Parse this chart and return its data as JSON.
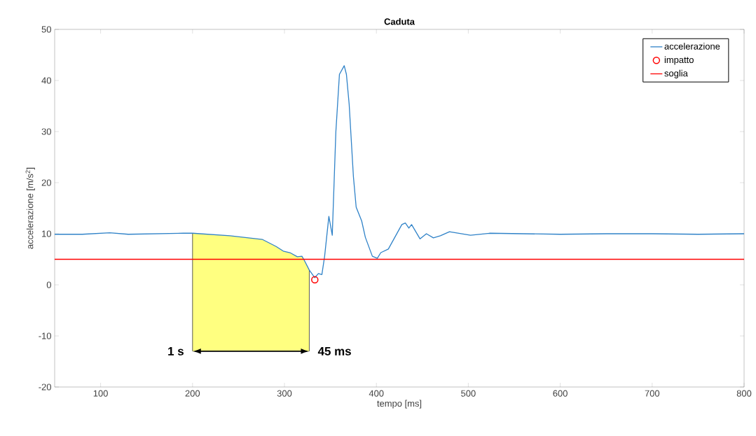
{
  "chart_data": {
    "type": "line",
    "title": "Caduta",
    "xlabel": "tempo [ms]",
    "ylabel": "accelerazione [m/s$^{2}$]",
    "xlim": [
      50,
      800
    ],
    "ylim": [
      -20,
      50
    ],
    "xticks": [
      100,
      200,
      300,
      400,
      500,
      600,
      700,
      800
    ],
    "yticks": [
      -20,
      -10,
      0,
      10,
      20,
      30,
      40,
      50
    ],
    "grid": false,
    "legend": "top right",
    "series": [
      {
        "name": "accelerazione",
        "color": "#2f82c8",
        "marker": "none",
        "x": [
          50,
          80,
          110,
          130,
          160,
          190,
          200,
          240.7,
          275.8,
          291,
          298.7,
          306,
          314,
          319,
          321.6,
          327,
          333,
          336.9,
          340.7,
          343.7,
          348.3,
          352,
          355.9,
          359.8,
          365,
          367.4,
          370.4,
          375,
          378,
          384,
          388,
          395.6,
          401,
          404.8,
          413,
          427.7,
          431.5,
          435.3,
          438.3,
          447.5,
          454.4,
          462,
          469.6,
          479.5,
          502.4,
          523,
          560,
          600,
          650,
          700,
          750,
          800
        ],
        "values": [
          9.9,
          9.9,
          10.2,
          9.9,
          10.0,
          10.1,
          10.1,
          9.6,
          8.9,
          7.5,
          6.6,
          6.3,
          5.5,
          5.6,
          4.8,
          2.9,
          1.4,
          2.2,
          2.0,
          5.6,
          13.4,
          9.7,
          29.9,
          41.2,
          42.9,
          41.2,
          35.3,
          21.2,
          15.2,
          12.5,
          9.3,
          5.6,
          5.2,
          6.3,
          7.0,
          11.8,
          12.1,
          11.1,
          11.8,
          9.0,
          10.0,
          9.2,
          9.6,
          10.4,
          9.7,
          10.1,
          10.0,
          9.9,
          10.0,
          10.0,
          9.9,
          10.0
        ]
      },
      {
        "name": "impatto",
        "type": "scatter",
        "color": "#ff0000",
        "marker": "circle",
        "x": [
          333
        ],
        "values": [
          1.0
        ]
      },
      {
        "name": "soglia",
        "color": "#ff0000",
        "marker": "none",
        "x": [
          50,
          800
        ],
        "values": [
          5,
          5
        ]
      }
    ],
    "bands": [
      {
        "axis": "x",
        "from": 200,
        "to": 327,
        "color": "#ffff80"
      }
    ],
    "annotations": [
      {
        "text": "1 s",
        "x": 200,
        "y": -13
      },
      {
        "text": "45 ms",
        "x": 327,
        "y": -13
      }
    ]
  }
}
